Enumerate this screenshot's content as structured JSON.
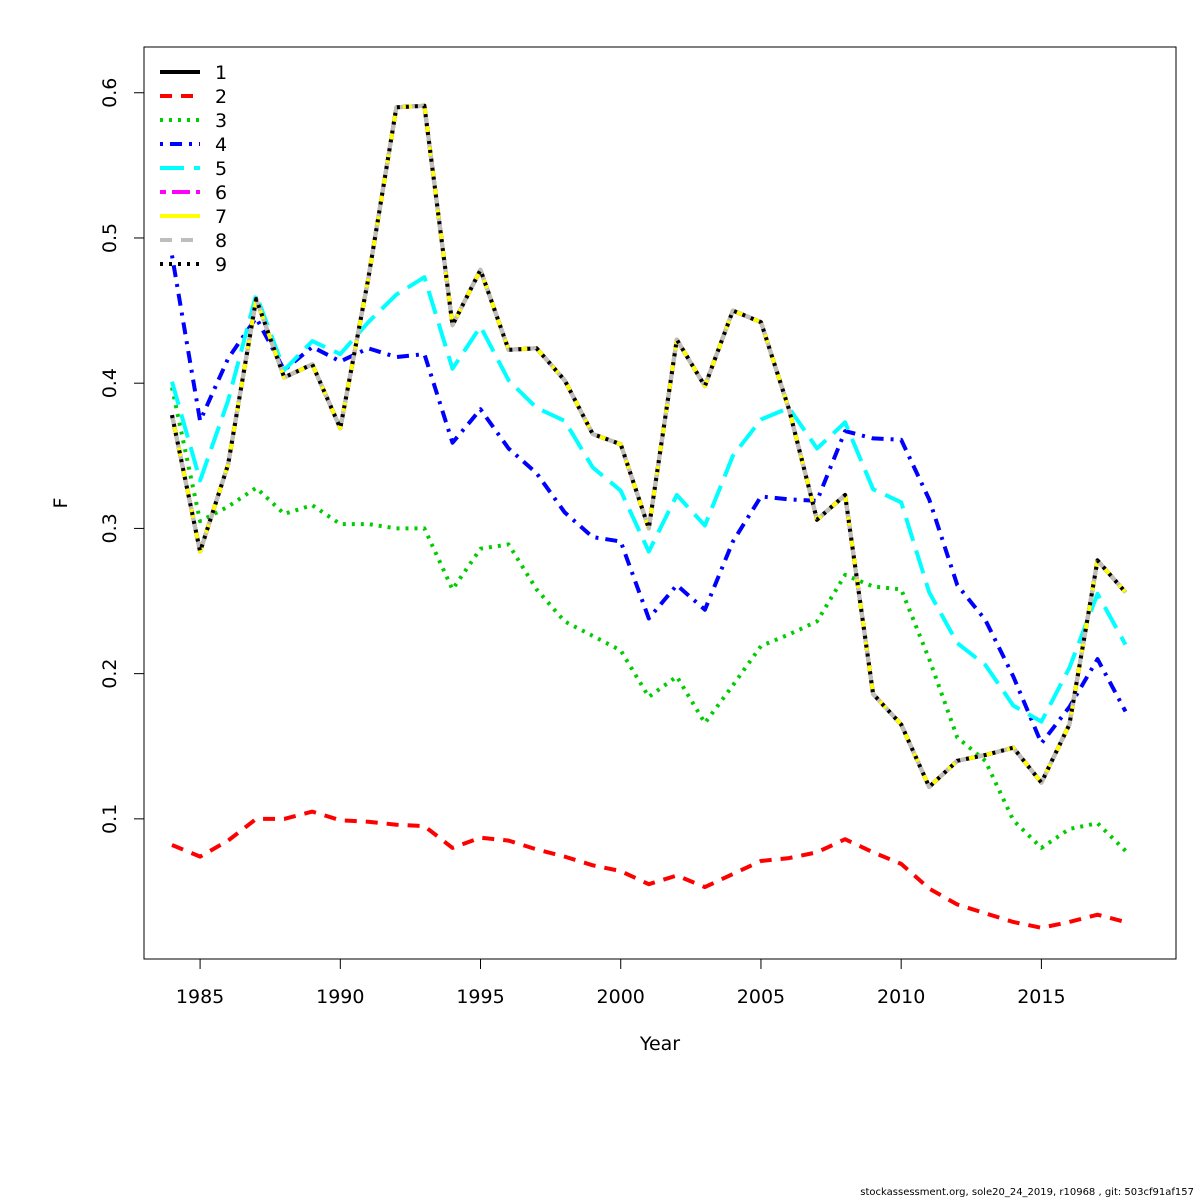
{
  "chart_data": {
    "type": "line",
    "title": "",
    "xlabel": "Year",
    "ylabel": "F",
    "xlim": [
      1983,
      2019.8
    ],
    "ylim": [
      0.0035,
      0.6315
    ],
    "xticks": [
      1985,
      1990,
      1995,
      2000,
      2005,
      2010,
      2015
    ],
    "xtick_labels": [
      "1985",
      "1990",
      "1995",
      "2000",
      "2005",
      "2010",
      "2015"
    ],
    "yticks": [
      0.1,
      0.2,
      0.3,
      0.4,
      0.5,
      0.6
    ],
    "ytick_labels": [
      "0.1",
      "0.2",
      "0.3",
      "0.4",
      "0.5",
      "0.6"
    ],
    "legend_position": "top-left",
    "x": [
      1984,
      1985,
      1986,
      1987,
      1988,
      1989,
      1990,
      1991,
      1992,
      1993,
      1994,
      1995,
      1996,
      1997,
      1998,
      1999,
      2000,
      2001,
      2002,
      2003,
      2004,
      2005,
      2006,
      2007,
      2008,
      2009,
      2010,
      2011,
      2012,
      2013,
      2014,
      2015,
      2016,
      2017,
      2018
    ],
    "series": [
      {
        "name": "1",
        "color": "#000000",
        "dash": "solid",
        "values": [
          0.378,
          0.284,
          0.344,
          0.458,
          0.404,
          0.413,
          0.369,
          0.472,
          0.59,
          0.591,
          0.44,
          0.478,
          0.423,
          0.424,
          0.402,
          0.365,
          0.358,
          0.3,
          0.43,
          0.398,
          0.45,
          0.442,
          0.382,
          0.306,
          0.323,
          0.186,
          0.165,
          0.122,
          0.14,
          0.144,
          0.149,
          0.125,
          0.165,
          0.278,
          0.256
        ]
      },
      {
        "name": "2",
        "color": "#ff0000",
        "dash": "dashed",
        "values": [
          0.082,
          0.074,
          0.085,
          0.1,
          0.1,
          0.105,
          0.099,
          0.098,
          0.096,
          0.095,
          0.08,
          0.087,
          0.085,
          0.079,
          0.074,
          0.068,
          0.064,
          0.055,
          0.061,
          0.053,
          0.062,
          0.071,
          0.073,
          0.077,
          0.086,
          0.077,
          0.069,
          0.052,
          0.041,
          0.035,
          0.029,
          0.025,
          0.029,
          0.034,
          0.029
        ]
      },
      {
        "name": "3",
        "color": "#00cd00",
        "dash": "dotted",
        "values": [
          0.397,
          0.305,
          0.315,
          0.328,
          0.31,
          0.316,
          0.303,
          0.303,
          0.3,
          0.3,
          0.258,
          0.286,
          0.289,
          0.258,
          0.236,
          0.226,
          0.216,
          0.184,
          0.198,
          0.166,
          0.192,
          0.219,
          0.227,
          0.236,
          0.268,
          0.26,
          0.258,
          0.21,
          0.156,
          0.14,
          0.099,
          0.08,
          0.093,
          0.097,
          0.078
        ]
      },
      {
        "name": "4",
        "color": "#0000ff",
        "dash": "dotdash",
        "values": [
          0.488,
          0.374,
          0.417,
          0.445,
          0.409,
          0.425,
          0.415,
          0.424,
          0.418,
          0.42,
          0.359,
          0.382,
          0.355,
          0.338,
          0.311,
          0.294,
          0.291,
          0.238,
          0.261,
          0.244,
          0.291,
          0.322,
          0.32,
          0.319,
          0.367,
          0.362,
          0.361,
          0.32,
          0.261,
          0.237,
          0.198,
          0.152,
          0.177,
          0.21,
          0.174
        ]
      },
      {
        "name": "5",
        "color": "#00ffff",
        "dash": "longdash",
        "values": [
          0.401,
          0.333,
          0.388,
          0.461,
          0.409,
          0.429,
          0.42,
          0.442,
          0.461,
          0.473,
          0.41,
          0.439,
          0.402,
          0.383,
          0.374,
          0.342,
          0.326,
          0.284,
          0.323,
          0.302,
          0.35,
          0.375,
          0.383,
          0.355,
          0.373,
          0.327,
          0.318,
          0.256,
          0.221,
          0.206,
          0.178,
          0.167,
          0.204,
          0.255,
          0.22
        ]
      },
      {
        "name": "6",
        "color": "#ff00ff",
        "dash": "twodash",
        "values": [
          0.378,
          0.284,
          0.344,
          0.458,
          0.404,
          0.413,
          0.369,
          0.472,
          0.59,
          0.591,
          0.44,
          0.478,
          0.423,
          0.424,
          0.402,
          0.365,
          0.358,
          0.3,
          0.43,
          0.398,
          0.45,
          0.442,
          0.382,
          0.306,
          0.323,
          0.186,
          0.165,
          0.122,
          0.14,
          0.144,
          0.149,
          0.125,
          0.165,
          0.278,
          0.256
        ]
      },
      {
        "name": "7",
        "color": "#ffff00",
        "dash": "solid",
        "values": [
          0.378,
          0.284,
          0.344,
          0.458,
          0.404,
          0.413,
          0.369,
          0.472,
          0.59,
          0.591,
          0.44,
          0.478,
          0.423,
          0.424,
          0.402,
          0.365,
          0.358,
          0.3,
          0.43,
          0.398,
          0.45,
          0.442,
          0.382,
          0.306,
          0.323,
          0.186,
          0.165,
          0.122,
          0.14,
          0.144,
          0.149,
          0.125,
          0.165,
          0.278,
          0.256
        ]
      },
      {
        "name": "8",
        "color": "#bebebe",
        "dash": "dashed",
        "values": [
          0.378,
          0.284,
          0.344,
          0.458,
          0.404,
          0.413,
          0.369,
          0.472,
          0.59,
          0.591,
          0.44,
          0.478,
          0.423,
          0.424,
          0.402,
          0.365,
          0.358,
          0.3,
          0.43,
          0.398,
          0.45,
          0.442,
          0.382,
          0.306,
          0.323,
          0.186,
          0.165,
          0.122,
          0.14,
          0.144,
          0.149,
          0.125,
          0.165,
          0.278,
          0.256
        ]
      },
      {
        "name": "9",
        "color": "#000000",
        "dash": "dotted",
        "values": [
          0.378,
          0.284,
          0.344,
          0.458,
          0.404,
          0.413,
          0.369,
          0.472,
          0.59,
          0.591,
          0.44,
          0.478,
          0.423,
          0.424,
          0.402,
          0.365,
          0.358,
          0.3,
          0.43,
          0.398,
          0.45,
          0.442,
          0.382,
          0.306,
          0.323,
          0.186,
          0.165,
          0.122,
          0.14,
          0.144,
          0.149,
          0.125,
          0.165,
          0.278,
          0.256
        ]
      }
    ]
  },
  "footer": {
    "text": "stockassessment.org, sole20_24_2019, r10968 , git: 503cf91af157"
  }
}
